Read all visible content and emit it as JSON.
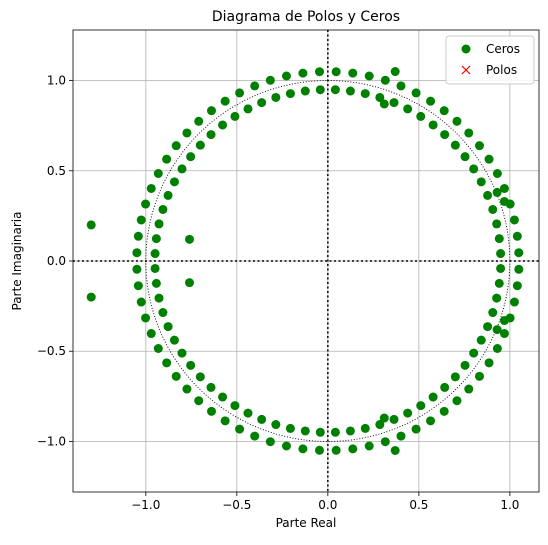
{
  "chart_data": {
    "type": "scatter",
    "title": "Diagrama de Polos y Ceros",
    "xlabel": "Parte Real",
    "ylabel": "Parte Imaginaria",
    "xlim": [
      -1.4,
      1.16
    ],
    "ylim": [
      -1.28,
      1.28
    ],
    "grid": true,
    "legend_position": "top-right",
    "x_ticks": [
      {
        "value": -1.0,
        "label": "−1.0"
      },
      {
        "value": -0.5,
        "label": "−0.5"
      },
      {
        "value": 0.0,
        "label": "0.0"
      },
      {
        "value": 0.5,
        "label": "0.5"
      },
      {
        "value": 1.0,
        "label": "1.0"
      }
    ],
    "y_ticks": [
      {
        "value": -1.0,
        "label": "−1.0"
      },
      {
        "value": -0.5,
        "label": "−0.5"
      },
      {
        "value": 0.0,
        "label": "0.0"
      },
      {
        "value": 0.5,
        "label": "0.5"
      },
      {
        "value": 1.0,
        "label": "1.0"
      }
    ],
    "unit_circle": {
      "radius": 1.0,
      "style": "dotted"
    },
    "series": [
      {
        "name": "Ceros",
        "marker": "circle",
        "color": "#008000",
        "rings": [
          {
            "radius": 1.05,
            "count": 72,
            "start_deg": 2.5
          },
          {
            "radius": 0.95,
            "count": 72,
            "start_deg": 2.5
          }
        ],
        "points": [
          {
            "x": -1.3,
            "y": 0.2
          },
          {
            "x": -1.3,
            "y": -0.2
          },
          {
            "x": -0.76,
            "y": 0.12
          },
          {
            "x": -0.76,
            "y": -0.12
          },
          {
            "x": 0.37,
            "y": 1.05
          },
          {
            "x": 0.37,
            "y": -1.05
          },
          {
            "x": 0.31,
            "y": 0.87
          },
          {
            "x": 0.31,
            "y": -0.87
          },
          {
            "x": 0.93,
            "y": 0.38
          },
          {
            "x": 0.93,
            "y": -0.38
          },
          {
            "x": 0.97,
            "y": 0.33
          },
          {
            "x": 0.97,
            "y": -0.33
          }
        ]
      },
      {
        "name": "Polos",
        "marker": "x",
        "color": "#ff0000",
        "points": []
      }
    ]
  }
}
